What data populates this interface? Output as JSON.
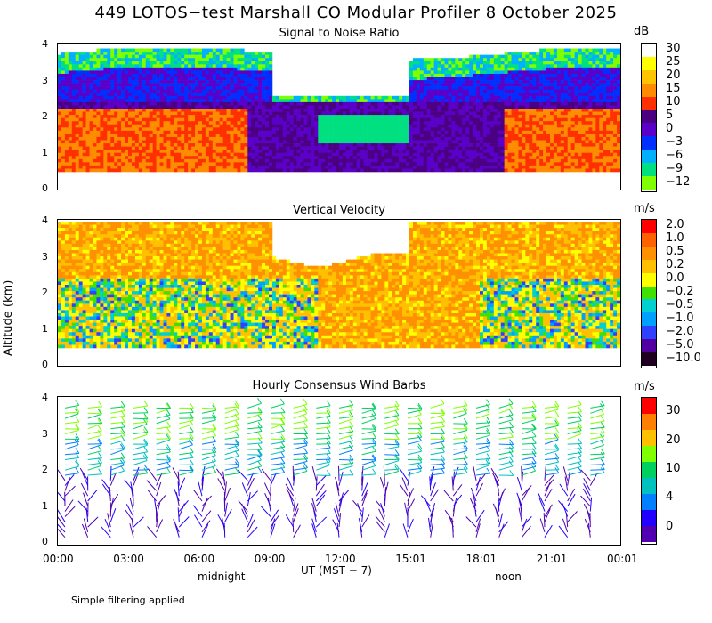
{
  "title": "449 LOTOS−test Marshall CO Modular Profiler  8 October 2025",
  "y_axis_label": "Altitude (km)",
  "x_axis": {
    "ticks": [
      "00:00",
      "03:00",
      "06:00",
      "09:00",
      "12:00",
      "15:01",
      "18:01",
      "21:01",
      "00:01"
    ],
    "label": "UT  (MST − 7)",
    "day_markers": [
      "midnight",
      "noon"
    ]
  },
  "footnote": "Simple filtering applied",
  "chart_data": [
    {
      "type": "heatmap",
      "title": "Signal to Noise Ratio",
      "ylabel": "Altitude (km)",
      "xlabel": "UT  (MST − 7)",
      "ylim": [
        0,
        4
      ],
      "yticks": [
        "0",
        "1",
        "2",
        "3",
        "4"
      ],
      "xlim_hours_ut": [
        0,
        24
      ],
      "colorbar": {
        "unit": "dB",
        "labels": [
          "30",
          "25",
          "20",
          "15",
          "10",
          "5",
          "0",
          "−3",
          "−6",
          "−9",
          "−12"
        ],
        "colors": [
          "#ffffff",
          "#ffff00",
          "#ffc400",
          "#ff8c00",
          "#ff3000",
          "#4b0082",
          "#5a00c8",
          "#0030ff",
          "#00b0ff",
          "#00e080",
          "#80ff00"
        ]
      },
      "summary": "High SNR (10-30 dB) below ~2 km during 00-08 UT and late day; weak returns above ~3 km"
    },
    {
      "type": "heatmap",
      "title": "Vertical Velocity",
      "ylabel": "Altitude (km)",
      "ylim": [
        0,
        4
      ],
      "yticks": [
        "0",
        "1",
        "2",
        "3",
        "4"
      ],
      "xlim_hours_ut": [
        0,
        24
      ],
      "colorbar": {
        "unit": "m/s",
        "labels": [
          "2.0",
          "1.0",
          "0.5",
          "0.2",
          "0.0",
          "−0.2",
          "−0.5",
          "−1.0",
          "−2.0",
          "−5.0",
          "−10.0"
        ],
        "colors": [
          "#ff0000",
          "#ff6000",
          "#ff9000",
          "#ffc000",
          "#ffff00",
          "#40e000",
          "#00d0d0",
          "#00a0ff",
          "#3040ff",
          "#5000a0",
          "#200020"
        ]
      },
      "summary": "Mostly weak upward/near-zero motion (0.0 to 1.0 m/s); mixed downward values below 2 km"
    },
    {
      "type": "scatter",
      "title": "Hourly Consensus Wind Barbs",
      "ylabel": "Altitude (km)",
      "ylim": [
        0,
        4
      ],
      "yticks": [
        "0",
        "1",
        "2",
        "3",
        "4"
      ],
      "xlim_hours_ut": [
        0,
        24
      ],
      "colorbar": {
        "unit": "m/s",
        "labels": [
          "30",
          "20",
          "10",
          "4",
          "0"
        ],
        "colors": [
          "#ff0000",
          "#ff8000",
          "#ffc000",
          "#80ff00",
          "#00d060",
          "#00c0c0",
          "#0080ff",
          "#2000ff",
          "#5000b0"
        ]
      },
      "summary": "Light winds (0-5 m/s) below 2 km, strengthening to 10-15 m/s above 3 km"
    }
  ]
}
